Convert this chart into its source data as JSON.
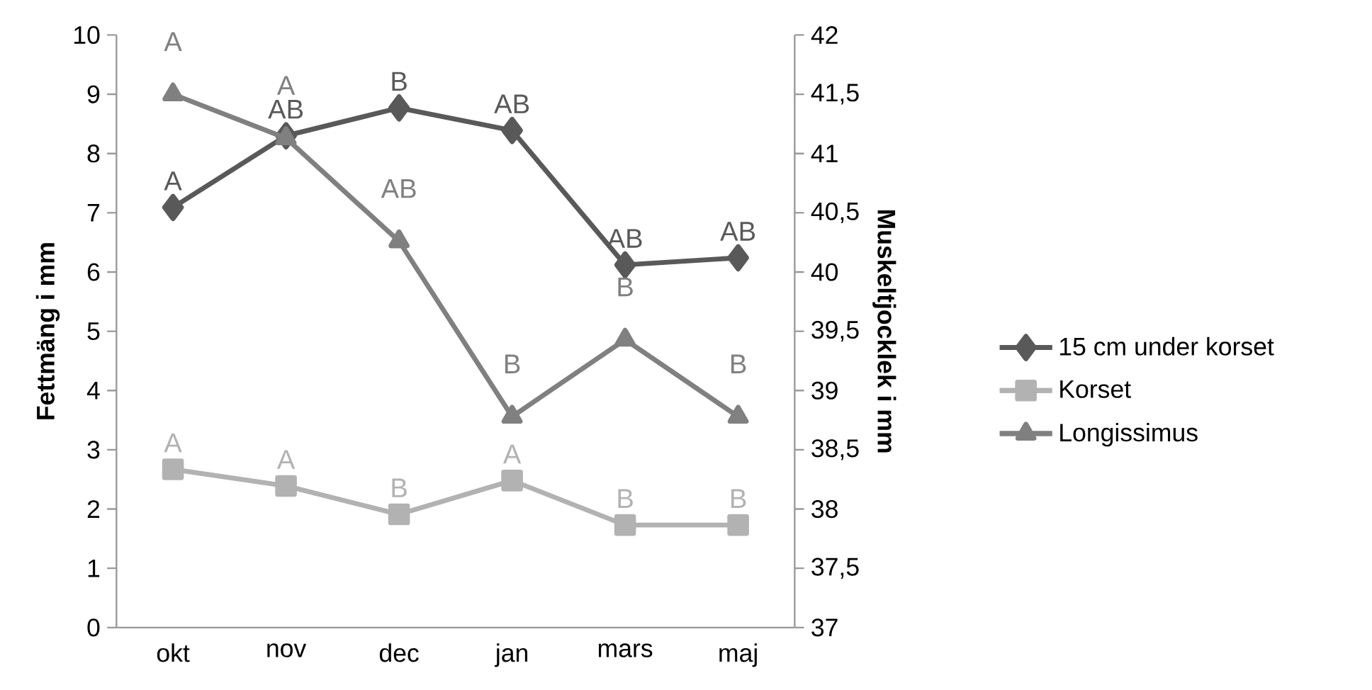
{
  "chart_data": {
    "type": "line",
    "categories": [
      "okt",
      "nov",
      "dec",
      "jan",
      "mars",
      "maj"
    ],
    "ylabel": "Fettmäng i mm",
    "y2label": "Muskeltjocklek i mm",
    "ylim": [
      0,
      10
    ],
    "yticks": [
      0,
      1,
      2,
      3,
      4,
      5,
      6,
      7,
      8,
      9,
      10
    ],
    "y2lim": [
      37,
      42
    ],
    "y2ticks": [
      37,
      {
        "value": 37.5,
        "label": "37,5"
      },
      38,
      {
        "value": 38.5,
        "label": "38,5"
      },
      39,
      {
        "value": 39.5,
        "label": "39,5"
      },
      40,
      {
        "value": 40.5,
        "label": "40,5"
      },
      41,
      {
        "value": 41.5,
        "label": "41,5"
      },
      42
    ],
    "legend": "right",
    "grid": false,
    "line_style": "solid",
    "series": [
      {
        "name": "15 cm under korset",
        "color": "#595959",
        "marker": "diamond",
        "values": [
          7.09,
          8.3,
          8.77,
          8.39,
          6.12,
          6.24
        ]
      },
      {
        "name": "Korset",
        "color": "#b2b2b2",
        "marker": "square",
        "values": [
          2.67,
          2.39,
          1.91,
          2.48,
          1.73,
          1.73
        ]
      },
      {
        "name": "Longissimus",
        "color": "#808080",
        "marker": "triangle",
        "axis": "y2",
        "values": [
          41.5,
          41.13,
          40.26,
          38.78,
          39.43,
          38.78
        ]
      }
    ],
    "annotations": [
      "A",
      "AB",
      "B",
      "AB",
      "AB",
      "AB",
      "A",
      "A",
      "B",
      "A",
      "B",
      "B",
      "A",
      "A",
      "AB",
      "B",
      "B",
      "B"
    ]
  }
}
